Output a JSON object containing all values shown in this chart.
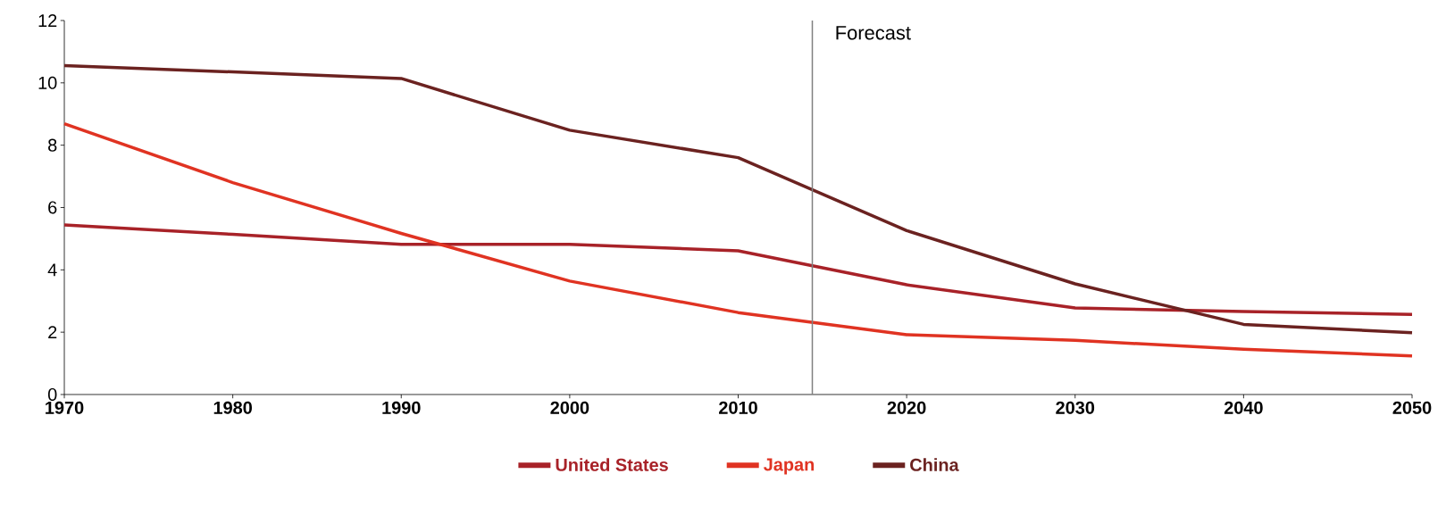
{
  "chart_data": {
    "type": "line",
    "x": [
      1970,
      1980,
      1990,
      2000,
      2010,
      2020,
      2030,
      2040,
      2050
    ],
    "series": [
      {
        "name": "United States",
        "color": "#a82228",
        "values": [
          5.44,
          5.14,
          4.82,
          4.82,
          4.61,
          3.52,
          2.78,
          2.66,
          2.57
        ]
      },
      {
        "name": "Japan",
        "color": "#e03322",
        "values": [
          8.69,
          6.8,
          5.17,
          3.64,
          2.63,
          1.92,
          1.74,
          1.45,
          1.24
        ]
      },
      {
        "name": "China",
        "color": "#6b2220",
        "values": [
          10.55,
          10.35,
          10.14,
          8.48,
          7.6,
          5.26,
          3.55,
          2.25,
          1.98
        ]
      }
    ],
    "xlim": [
      1970,
      2050
    ],
    "ylim": [
      0,
      12
    ],
    "xticks": [
      1970,
      1980,
      1990,
      2000,
      2010,
      2020,
      2030,
      2040,
      2050
    ],
    "yticks": [
      0,
      2,
      4,
      6,
      8,
      10,
      12
    ],
    "ref_lines": [
      {
        "axis": "x",
        "value": 2014.4,
        "label": "Forecast",
        "color": "#808080"
      }
    ],
    "legend": "bottom",
    "grid": false,
    "marker": "none",
    "line_style": "solid"
  }
}
